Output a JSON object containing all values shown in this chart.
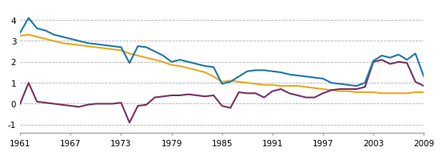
{
  "years": [
    1961,
    1962,
    1963,
    1964,
    1965,
    1966,
    1967,
    1968,
    1969,
    1970,
    1971,
    1972,
    1973,
    1974,
    1975,
    1976,
    1977,
    1978,
    1979,
    1980,
    1981,
    1982,
    1983,
    1984,
    1985,
    1986,
    1987,
    1988,
    1989,
    1990,
    1991,
    1992,
    1993,
    1994,
    1995,
    1996,
    1997,
    1998,
    1999,
    2000,
    2001,
    2002,
    2003,
    2004,
    2005,
    2006,
    2007,
    2008,
    2009
  ],
  "blue": [
    3.4,
    4.1,
    3.6,
    3.5,
    3.3,
    3.2,
    3.1,
    3.0,
    2.9,
    2.85,
    2.8,
    2.75,
    2.7,
    1.95,
    2.75,
    2.7,
    2.5,
    2.3,
    2.0,
    2.1,
    2.0,
    1.9,
    1.8,
    1.75,
    0.95,
    1.05,
    1.3,
    1.55,
    1.6,
    1.6,
    1.55,
    1.5,
    1.4,
    1.35,
    1.3,
    1.25,
    1.2,
    1.0,
    0.95,
    0.9,
    0.85,
    1.0,
    2.05,
    2.3,
    2.2,
    2.35,
    2.1,
    2.4,
    1.3
  ],
  "yellow": [
    3.25,
    3.3,
    3.2,
    3.1,
    3.0,
    2.9,
    2.85,
    2.8,
    2.75,
    2.7,
    2.65,
    2.6,
    2.55,
    2.4,
    2.3,
    2.2,
    2.1,
    2.0,
    1.85,
    1.8,
    1.7,
    1.6,
    1.5,
    1.3,
    1.05,
    1.1,
    1.05,
    1.0,
    0.95,
    0.9,
    0.9,
    0.85,
    0.85,
    0.85,
    0.8,
    0.75,
    0.7,
    0.65,
    0.6,
    0.6,
    0.55,
    0.55,
    0.55,
    0.5,
    0.5,
    0.5,
    0.5,
    0.55,
    0.55
  ],
  "purple": [
    0.0,
    1.0,
    0.1,
    0.05,
    0.0,
    -0.05,
    -0.1,
    -0.15,
    -0.05,
    0.0,
    0.0,
    0.0,
    0.05,
    -0.9,
    -0.1,
    -0.05,
    0.3,
    0.35,
    0.4,
    0.4,
    0.45,
    0.4,
    0.35,
    0.4,
    -0.1,
    -0.2,
    0.55,
    0.5,
    0.5,
    0.3,
    0.6,
    0.7,
    0.5,
    0.4,
    0.3,
    0.3,
    0.5,
    0.65,
    0.7,
    0.7,
    0.7,
    0.8,
    2.0,
    2.1,
    1.9,
    2.0,
    1.95,
    1.05,
    0.85
  ],
  "blue_color": "#2077a8",
  "yellow_color": "#e8a820",
  "purple_color": "#7b3060",
  "bg_color": "#ffffff",
  "grid_color": "#b0b0b0",
  "yticks": [
    -1,
    0,
    1,
    2,
    3,
    4
  ],
  "xtick_labels": [
    "1961",
    "1967",
    "1973",
    "1979",
    "1985",
    "1991",
    "1997",
    "2003",
    "2009"
  ],
  "xtick_years": [
    1961,
    1967,
    1973,
    1979,
    1985,
    1991,
    1997,
    2003,
    2009
  ],
  "ylim": [
    -1.4,
    4.6
  ],
  "xlim": [
    1961,
    2009
  ]
}
